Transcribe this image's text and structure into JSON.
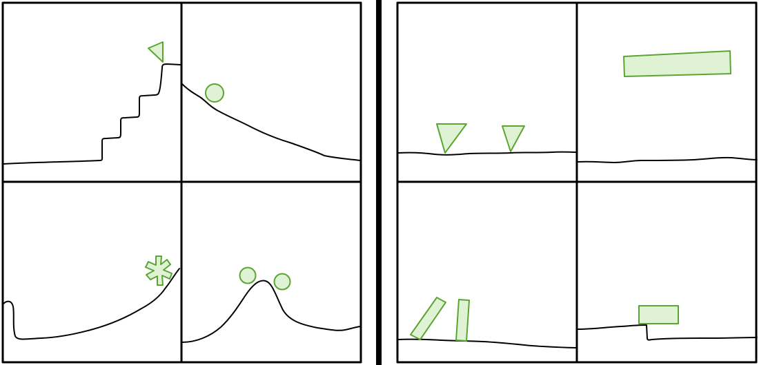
{
  "colors": {
    "background": "#ffffff",
    "line": "#000000",
    "shape_stroke": "#5aa532",
    "shape_fill": "#e0f2d4"
  },
  "left_group": {
    "panels": [
      {
        "terrain": "staircase",
        "objects": [
          "triangle"
        ]
      },
      {
        "terrain": "downward-slope",
        "objects": [
          "circle"
        ]
      },
      {
        "terrain": "upward-curve",
        "objects": [
          "asterisk"
        ]
      },
      {
        "terrain": "hill",
        "objects": [
          "circle",
          "circle"
        ]
      }
    ]
  },
  "right_group": {
    "panels": [
      {
        "terrain": "flat-ground",
        "objects": [
          "inverted-triangle",
          "inverted-triangle"
        ]
      },
      {
        "terrain": "flat-ground",
        "objects": [
          "long-bar"
        ]
      },
      {
        "terrain": "flat-ground",
        "objects": [
          "tilted-bar",
          "upright-bar"
        ]
      },
      {
        "terrain": "step-ground",
        "objects": [
          "rectangle"
        ]
      }
    ]
  }
}
